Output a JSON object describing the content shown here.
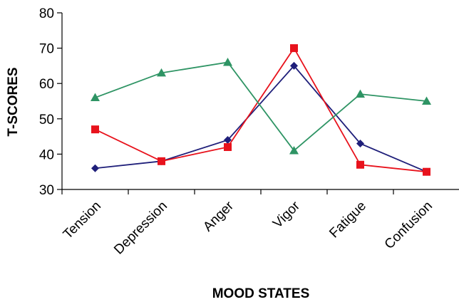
{
  "chart_data": {
    "type": "line",
    "categories": [
      "Tension",
      "Depression",
      "Anger",
      "Vigor",
      "Fatigue",
      "Confusion"
    ],
    "ylim": [
      30,
      80
    ],
    "yticks": [
      30,
      40,
      50,
      60,
      70,
      80
    ],
    "xlabel": "MOOD STATES",
    "ylabel": "T-SCORES",
    "grid": false,
    "legend": "none",
    "series": [
      {
        "values": [
          36,
          38,
          44,
          65,
          43,
          35
        ],
        "color": "#1f1f7a",
        "marker": "diamond"
      },
      {
        "values": [
          47,
          38,
          42,
          70,
          37,
          35
        ],
        "color": "#e8121c",
        "marker": "square"
      },
      {
        "values": [
          56,
          63,
          66,
          41,
          57,
          55
        ],
        "color": "#2e9464",
        "marker": "triangle"
      }
    ]
  }
}
